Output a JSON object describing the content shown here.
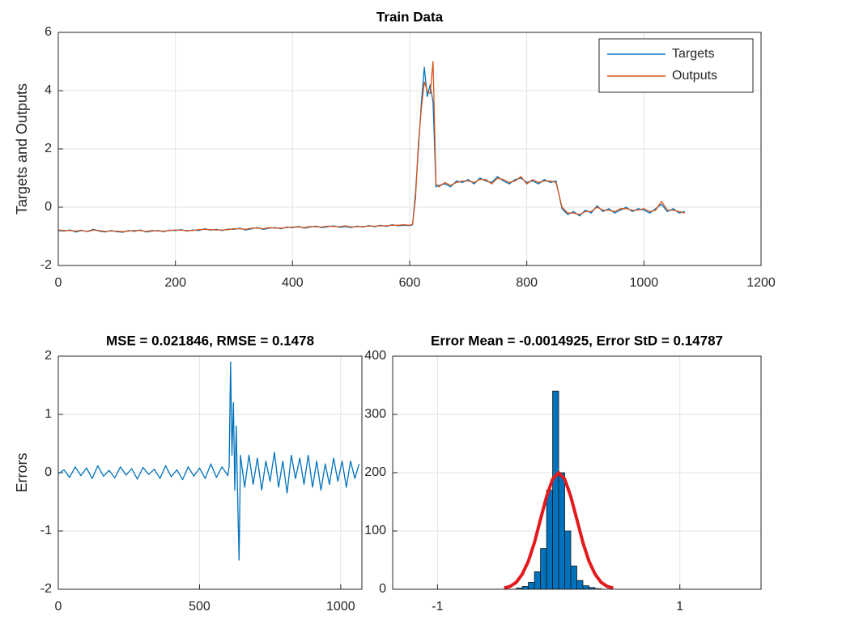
{
  "chart_data": [
    {
      "type": "line",
      "title": "Train Data",
      "ylabel": "Targets and Outputs",
      "xlim": [
        0,
        1200
      ],
      "xticks": [
        0,
        200,
        400,
        600,
        800,
        1000,
        1200
      ],
      "ylim": [
        -2,
        6
      ],
      "yticks": [
        -2,
        0,
        2,
        4,
        6
      ],
      "grid": true,
      "legend": "upper right",
      "x": [
        0,
        10,
        20,
        30,
        40,
        50,
        60,
        70,
        80,
        90,
        100,
        110,
        120,
        130,
        140,
        150,
        160,
        170,
        180,
        190,
        200,
        210,
        220,
        230,
        240,
        250,
        260,
        270,
        280,
        290,
        300,
        310,
        320,
        330,
        340,
        350,
        360,
        370,
        380,
        390,
        400,
        410,
        420,
        430,
        440,
        450,
        460,
        470,
        480,
        490,
        500,
        510,
        520,
        530,
        540,
        550,
        560,
        570,
        580,
        590,
        600,
        605,
        610,
        615,
        620,
        625,
        630,
        635,
        640,
        645,
        650,
        660,
        670,
        680,
        690,
        700,
        710,
        720,
        730,
        740,
        750,
        760,
        770,
        780,
        790,
        800,
        810,
        820,
        830,
        840,
        850,
        860,
        870,
        880,
        890,
        900,
        910,
        920,
        930,
        940,
        950,
        960,
        970,
        980,
        990,
        1000,
        1010,
        1020,
        1030,
        1040,
        1050,
        1060,
        1070
      ],
      "series": [
        {
          "name": "Targets",
          "color": "#0072bd",
          "values": [
            -0.8,
            -0.82,
            -0.78,
            -0.85,
            -0.8,
            -0.83,
            -0.76,
            -0.82,
            -0.85,
            -0.8,
            -0.84,
            -0.86,
            -0.8,
            -0.83,
            -0.78,
            -0.85,
            -0.82,
            -0.8,
            -0.84,
            -0.79,
            -0.8,
            -0.77,
            -0.82,
            -0.78,
            -0.8,
            -0.74,
            -0.79,
            -0.76,
            -0.8,
            -0.75,
            -0.76,
            -0.72,
            -0.78,
            -0.74,
            -0.7,
            -0.76,
            -0.72,
            -0.7,
            -0.74,
            -0.68,
            -0.7,
            -0.66,
            -0.72,
            -0.68,
            -0.65,
            -0.7,
            -0.67,
            -0.64,
            -0.69,
            -0.66,
            -0.7,
            -0.65,
            -0.68,
            -0.63,
            -0.67,
            -0.62,
            -0.66,
            -0.6,
            -0.64,
            -0.62,
            -0.63,
            -0.6,
            0.5,
            2.0,
            3.6,
            4.8,
            3.8,
            4.2,
            3.6,
            0.7,
            0.75,
            0.8,
            0.7,
            0.9,
            0.85,
            0.95,
            0.8,
            1.0,
            0.9,
            0.85,
            1.05,
            0.9,
            0.8,
            0.95,
            1.0,
            0.85,
            0.9,
            0.8,
            0.95,
            0.85,
            0.9,
            -0.05,
            -0.25,
            -0.15,
            -0.3,
            -0.1,
            -0.2,
            0.05,
            -0.15,
            -0.05,
            -0.2,
            -0.1,
            0.0,
            -0.15,
            -0.05,
            -0.1,
            -0.2,
            -0.05,
            0.1,
            -0.15,
            -0.05,
            -0.2,
            -0.15
          ]
        },
        {
          "name": "Outputs",
          "color": "#d95319",
          "values": [
            -0.78,
            -0.8,
            -0.8,
            -0.82,
            -0.79,
            -0.84,
            -0.78,
            -0.8,
            -0.83,
            -0.82,
            -0.82,
            -0.84,
            -0.82,
            -0.8,
            -0.8,
            -0.83,
            -0.8,
            -0.82,
            -0.82,
            -0.8,
            -0.78,
            -0.79,
            -0.8,
            -0.8,
            -0.77,
            -0.76,
            -0.77,
            -0.78,
            -0.78,
            -0.77,
            -0.74,
            -0.74,
            -0.76,
            -0.72,
            -0.72,
            -0.74,
            -0.7,
            -0.72,
            -0.72,
            -0.7,
            -0.68,
            -0.68,
            -0.7,
            -0.66,
            -0.67,
            -0.68,
            -0.65,
            -0.66,
            -0.67,
            -0.64,
            -0.68,
            -0.67,
            -0.66,
            -0.65,
            -0.65,
            -0.64,
            -0.64,
            -0.62,
            -0.62,
            -0.6,
            -0.62,
            -0.58,
            0.3,
            2.2,
            3.4,
            4.3,
            4.0,
            3.9,
            5.0,
            0.8,
            0.7,
            0.85,
            0.75,
            0.85,
            0.9,
            0.9,
            0.85,
            0.95,
            0.95,
            0.8,
            1.0,
            0.95,
            0.85,
            0.9,
            1.05,
            0.8,
            0.95,
            0.85,
            0.9,
            0.9,
            0.85,
            0.0,
            -0.2,
            -0.2,
            -0.25,
            -0.15,
            -0.15,
            0.0,
            -0.1,
            -0.1,
            -0.15,
            -0.05,
            -0.05,
            -0.1,
            -0.1,
            -0.05,
            -0.15,
            -0.1,
            0.2,
            -0.1,
            -0.1,
            -0.15,
            -0.2
          ]
        }
      ]
    },
    {
      "type": "line",
      "title": "MSE = 0.021846, RMSE = 0.1478",
      "ylabel": "Errors",
      "xlim": [
        0,
        1075
      ],
      "xticks": [
        0,
        500,
        1000
      ],
      "ylim": [
        -2,
        2
      ],
      "yticks": [
        -2,
        -1,
        0,
        1,
        2
      ],
      "grid": true,
      "x": [
        0,
        20,
        40,
        60,
        80,
        100,
        120,
        140,
        160,
        180,
        200,
        220,
        240,
        260,
        280,
        300,
        320,
        340,
        360,
        380,
        400,
        420,
        440,
        460,
        480,
        500,
        520,
        540,
        560,
        580,
        600,
        605,
        610,
        615,
        620,
        625,
        630,
        635,
        640,
        645,
        660,
        675,
        690,
        705,
        720,
        735,
        750,
        765,
        780,
        795,
        810,
        825,
        840,
        855,
        870,
        885,
        900,
        915,
        930,
        945,
        960,
        975,
        990,
        1005,
        1020,
        1035,
        1050,
        1065
      ],
      "series": [
        {
          "color": "#0072bd",
          "values": [
            -0.02,
            0.05,
            -0.08,
            0.1,
            -0.05,
            0.08,
            -0.1,
            0.12,
            -0.06,
            0.04,
            -0.09,
            0.1,
            -0.04,
            0.07,
            -0.11,
            0.09,
            -0.03,
            0.06,
            -0.1,
            0.12,
            -0.07,
            0.05,
            -0.12,
            0.1,
            -0.06,
            0.08,
            -0.1,
            0.15,
            -0.08,
            0.1,
            -0.05,
            0.1,
            1.9,
            0.3,
            1.2,
            -0.3,
            0.8,
            -0.4,
            -1.5,
            0.3,
            -0.25,
            0.3,
            -0.2,
            0.25,
            -0.3,
            0.2,
            -0.15,
            0.35,
            -0.25,
            0.2,
            -0.35,
            0.3,
            -0.1,
            0.25,
            -0.2,
            0.3,
            -0.25,
            0.2,
            -0.3,
            0.15,
            -0.2,
            0.25,
            -0.15,
            0.2,
            -0.25,
            0.2,
            -0.1,
            0.15
          ]
        }
      ]
    },
    {
      "type": "histogram",
      "title": "Error Mean = -0.0014925, Error StD = 0.14787",
      "xlim": [
        -1.37,
        1.67
      ],
      "xticks": [
        -1,
        1
      ],
      "ylim": [
        0,
        400
      ],
      "yticks": [
        0,
        100,
        200,
        300,
        400
      ],
      "grid": true,
      "bins": [
        -0.35,
        -0.3,
        -0.25,
        -0.2,
        -0.15,
        -0.1,
        -0.05,
        0.0,
        0.05,
        0.1,
        0.15,
        0.2,
        0.25,
        0.3,
        0.35
      ],
      "counts": [
        2,
        5,
        12,
        30,
        70,
        170,
        340,
        200,
        100,
        40,
        15,
        6,
        3,
        1
      ],
      "color": "#0072bd",
      "fit": {
        "color": "#e31a1c",
        "x": [
          -0.45,
          -0.4,
          -0.35,
          -0.3,
          -0.25,
          -0.2,
          -0.15,
          -0.1,
          -0.05,
          0,
          0.05,
          0.1,
          0.15,
          0.2,
          0.25,
          0.3,
          0.35,
          0.4,
          0.45
        ],
        "values": [
          2,
          5,
          12,
          26,
          48,
          80,
          120,
          159,
          189,
          200,
          189,
          159,
          120,
          80,
          48,
          26,
          12,
          5,
          2
        ]
      }
    }
  ]
}
